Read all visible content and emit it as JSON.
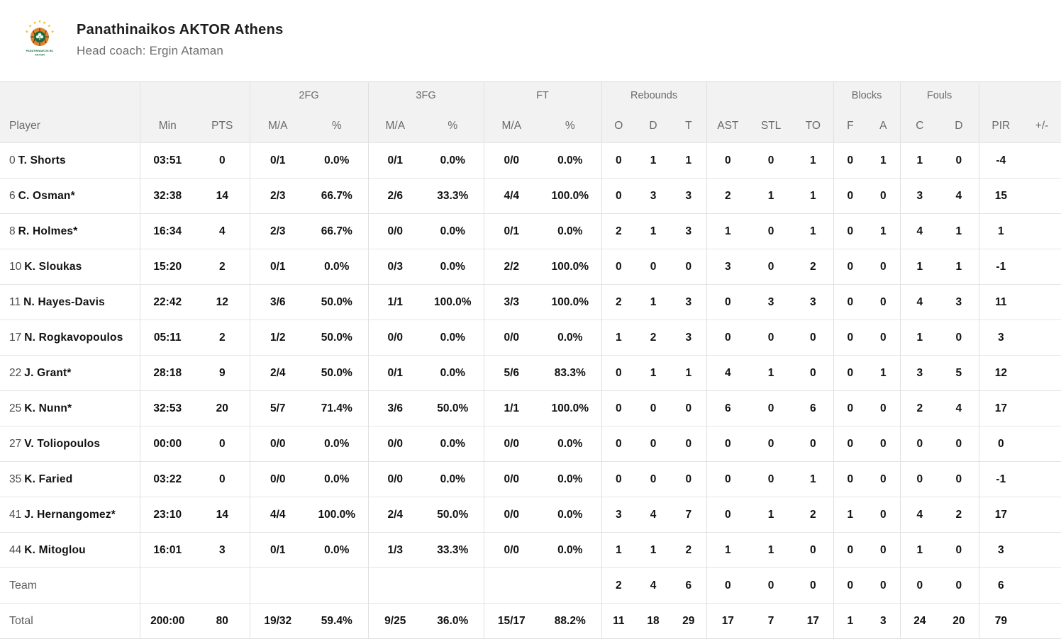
{
  "header": {
    "team_name": "Panathinaikos AKTOR Athens",
    "coach_line": "Head coach: Ergin Ataman",
    "logo_text_line1": "PANATHINAIKOS BC",
    "logo_text_line2": "AKTOR"
  },
  "colors": {
    "header_bg": "#f2f2f2",
    "row_border": "#e4e4e4",
    "logo_orange": "#e0812b",
    "logo_green": "#17693f",
    "logo_star_yellow": "#f2c125"
  },
  "table": {
    "groups": {
      "fg2": "2FG",
      "fg3": "3FG",
      "ft": "FT",
      "rebounds": "Rebounds",
      "blocks": "Blocks",
      "fouls": "Fouls"
    },
    "columns": [
      "Player",
      "Min",
      "PTS",
      "M/A",
      "%",
      "M/A",
      "%",
      "M/A",
      "%",
      "O",
      "D",
      "T",
      "AST",
      "STL",
      "TO",
      "F",
      "A",
      "C",
      "D",
      "PIR",
      "+/-"
    ],
    "rows": [
      {
        "num": "0",
        "name": "T. Shorts",
        "cells": [
          "03:51",
          "0",
          "0/1",
          "0.0%",
          "0/1",
          "0.0%",
          "0/0",
          "0.0%",
          "0",
          "1",
          "1",
          "0",
          "0",
          "1",
          "0",
          "1",
          "1",
          "0",
          "-4",
          ""
        ]
      },
      {
        "num": "6",
        "name": "C. Osman*",
        "cells": [
          "32:38",
          "14",
          "2/3",
          "66.7%",
          "2/6",
          "33.3%",
          "4/4",
          "100.0%",
          "0",
          "3",
          "3",
          "2",
          "1",
          "1",
          "0",
          "0",
          "3",
          "4",
          "15",
          ""
        ]
      },
      {
        "num": "8",
        "name": "R. Holmes*",
        "cells": [
          "16:34",
          "4",
          "2/3",
          "66.7%",
          "0/0",
          "0.0%",
          "0/1",
          "0.0%",
          "2",
          "1",
          "3",
          "1",
          "0",
          "1",
          "0",
          "1",
          "4",
          "1",
          "1",
          ""
        ]
      },
      {
        "num": "10",
        "name": "K. Sloukas",
        "cells": [
          "15:20",
          "2",
          "0/1",
          "0.0%",
          "0/3",
          "0.0%",
          "2/2",
          "100.0%",
          "0",
          "0",
          "0",
          "3",
          "0",
          "2",
          "0",
          "0",
          "1",
          "1",
          "-1",
          ""
        ]
      },
      {
        "num": "11",
        "name": "N. Hayes-Davis",
        "cells": [
          "22:42",
          "12",
          "3/6",
          "50.0%",
          "1/1",
          "100.0%",
          "3/3",
          "100.0%",
          "2",
          "1",
          "3",
          "0",
          "3",
          "3",
          "0",
          "0",
          "4",
          "3",
          "11",
          ""
        ]
      },
      {
        "num": "17",
        "name": "N. Rogkavopoulos",
        "cells": [
          "05:11",
          "2",
          "1/2",
          "50.0%",
          "0/0",
          "0.0%",
          "0/0",
          "0.0%",
          "1",
          "2",
          "3",
          "0",
          "0",
          "0",
          "0",
          "0",
          "1",
          "0",
          "3",
          ""
        ]
      },
      {
        "num": "22",
        "name": "J. Grant*",
        "cells": [
          "28:18",
          "9",
          "2/4",
          "50.0%",
          "0/1",
          "0.0%",
          "5/6",
          "83.3%",
          "0",
          "1",
          "1",
          "4",
          "1",
          "0",
          "0",
          "1",
          "3",
          "5",
          "12",
          ""
        ]
      },
      {
        "num": "25",
        "name": "K. Nunn*",
        "cells": [
          "32:53",
          "20",
          "5/7",
          "71.4%",
          "3/6",
          "50.0%",
          "1/1",
          "100.0%",
          "0",
          "0",
          "0",
          "6",
          "0",
          "6",
          "0",
          "0",
          "2",
          "4",
          "17",
          ""
        ]
      },
      {
        "num": "27",
        "name": "V. Toliopoulos",
        "cells": [
          "00:00",
          "0",
          "0/0",
          "0.0%",
          "0/0",
          "0.0%",
          "0/0",
          "0.0%",
          "0",
          "0",
          "0",
          "0",
          "0",
          "0",
          "0",
          "0",
          "0",
          "0",
          "0",
          ""
        ]
      },
      {
        "num": "35",
        "name": "K. Faried",
        "cells": [
          "03:22",
          "0",
          "0/0",
          "0.0%",
          "0/0",
          "0.0%",
          "0/0",
          "0.0%",
          "0",
          "0",
          "0",
          "0",
          "0",
          "1",
          "0",
          "0",
          "0",
          "0",
          "-1",
          ""
        ]
      },
      {
        "num": "41",
        "name": "J. Hernangomez*",
        "cells": [
          "23:10",
          "14",
          "4/4",
          "100.0%",
          "2/4",
          "50.0%",
          "0/0",
          "0.0%",
          "3",
          "4",
          "7",
          "0",
          "1",
          "2",
          "1",
          "0",
          "4",
          "2",
          "17",
          ""
        ]
      },
      {
        "num": "44",
        "name": "K. Mitoglou",
        "cells": [
          "16:01",
          "3",
          "0/1",
          "0.0%",
          "1/3",
          "33.3%",
          "0/0",
          "0.0%",
          "1",
          "1",
          "2",
          "1",
          "1",
          "0",
          "0",
          "0",
          "1",
          "0",
          "3",
          ""
        ]
      }
    ],
    "team_row": {
      "label": "Team",
      "cells": [
        "",
        "",
        "",
        "",
        "",
        "",
        "",
        "",
        "2",
        "4",
        "6",
        "0",
        "0",
        "0",
        "0",
        "0",
        "0",
        "0",
        "6",
        ""
      ]
    },
    "total_row": {
      "label": "Total",
      "cells": [
        "200:00",
        "80",
        "19/32",
        "59.4%",
        "9/25",
        "36.0%",
        "15/17",
        "88.2%",
        "11",
        "18",
        "29",
        "17",
        "7",
        "17",
        "1",
        "3",
        "24",
        "20",
        "79",
        ""
      ]
    }
  }
}
